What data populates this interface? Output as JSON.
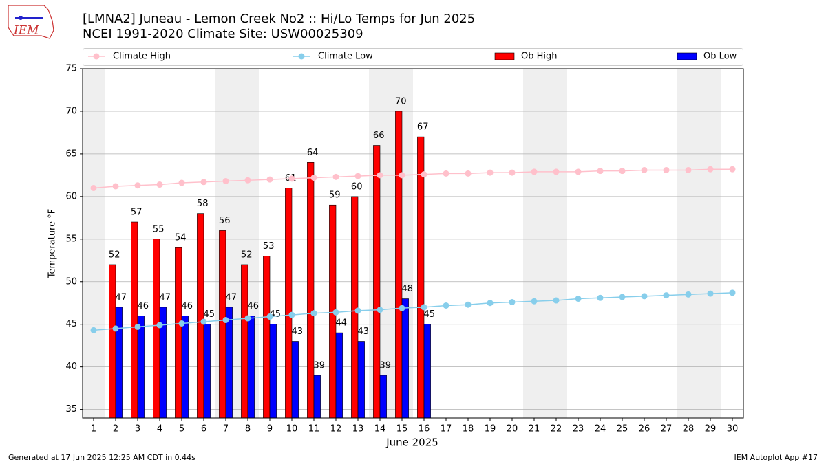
{
  "logo": "IEM",
  "footer_left": "Generated at 17 Jun 2025 12:25 AM CDT in 0.44s",
  "footer_right": "IEM Autoplot App #17",
  "chart_data": {
    "type": "bar",
    "title": "[LMNA2] Juneau - Lemon Creek No2 :: Hi/Lo Temps for Jun 2025",
    "subtitle": "NCEI 1991-2020 Climate Site: USW00025309",
    "x_label": "June 2025",
    "y_label": "Temperature °F",
    "x": [
      1,
      2,
      3,
      4,
      5,
      6,
      7,
      8,
      9,
      10,
      11,
      12,
      13,
      14,
      15,
      16,
      17,
      18,
      19,
      20,
      21,
      22,
      23,
      24,
      25,
      26,
      27,
      28,
      29,
      30
    ],
    "xlim": [
      0.5,
      30.5
    ],
    "xticks": [
      1,
      2,
      3,
      4,
      5,
      6,
      7,
      8,
      9,
      10,
      11,
      12,
      13,
      14,
      15,
      16,
      17,
      18,
      19,
      20,
      21,
      22,
      23,
      24,
      25,
      26,
      27,
      28,
      29,
      30
    ],
    "ylim": [
      34,
      75
    ],
    "yticks": [
      35,
      40,
      45,
      50,
      55,
      60,
      65,
      70,
      75
    ],
    "grid": true,
    "shaded_days": [
      1,
      7,
      8,
      14,
      15,
      21,
      22,
      28,
      29
    ],
    "series": [
      {
        "name": "Climate High",
        "kind": "line",
        "color": "#ffc0cb",
        "values": [
          61.0,
          61.2,
          61.3,
          61.4,
          61.6,
          61.7,
          61.8,
          61.9,
          62.0,
          62.1,
          62.2,
          62.3,
          62.4,
          62.5,
          62.5,
          62.6,
          62.7,
          62.7,
          62.8,
          62.8,
          62.9,
          62.9,
          62.9,
          63.0,
          63.0,
          63.1,
          63.1,
          63.1,
          63.2,
          63.2
        ]
      },
      {
        "name": "Climate Low",
        "kind": "line",
        "color": "#87ceeb",
        "values": [
          44.3,
          44.5,
          44.7,
          44.9,
          45.1,
          45.3,
          45.5,
          45.7,
          45.9,
          46.1,
          46.3,
          46.4,
          46.6,
          46.7,
          46.9,
          47.0,
          47.2,
          47.3,
          47.5,
          47.6,
          47.7,
          47.8,
          48.0,
          48.1,
          48.2,
          48.3,
          48.4,
          48.5,
          48.6,
          48.7
        ]
      },
      {
        "name": "Ob High",
        "kind": "bar",
        "color": "#ff0000",
        "values": [
          null,
          52,
          57,
          55,
          54,
          58,
          56,
          52,
          53,
          61,
          64,
          59,
          60,
          66,
          70,
          67,
          null,
          null,
          null,
          null,
          null,
          null,
          null,
          null,
          null,
          null,
          null,
          null,
          null,
          null
        ]
      },
      {
        "name": "Ob Low",
        "kind": "bar",
        "color": "#0000ff",
        "values": [
          null,
          47,
          46,
          47,
          46,
          45,
          47,
          46,
          45,
          43,
          39,
          44,
          43,
          39,
          48,
          45,
          null,
          null,
          null,
          null,
          null,
          null,
          null,
          null,
          null,
          null,
          null,
          null,
          null,
          null
        ]
      }
    ]
  }
}
